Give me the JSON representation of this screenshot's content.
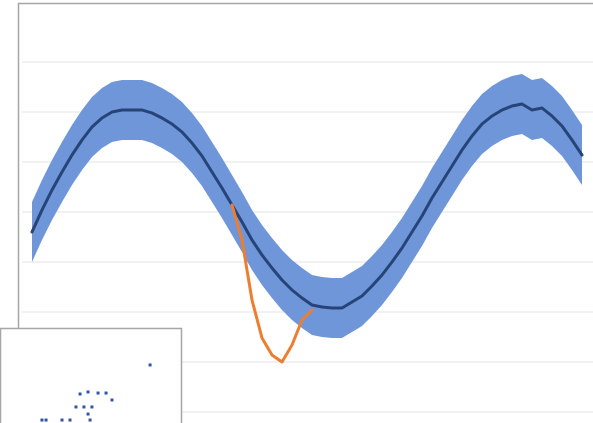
{
  "chart_data": [
    {
      "type": "line",
      "x": [
        0,
        1,
        2,
        3,
        4,
        5,
        6,
        7,
        8,
        9,
        10,
        11,
        12,
        13,
        14,
        15,
        16,
        17,
        18,
        19,
        20,
        21,
        22,
        23,
        24,
        25,
        26,
        27,
        28,
        29,
        30,
        31,
        32,
        33,
        34,
        35,
        36,
        37,
        38,
        39,
        40,
        41,
        42,
        43,
        44,
        45,
        46,
        47,
        48,
        49,
        50,
        51,
        52,
        53,
        54,
        55
      ],
      "xlim": [
        0,
        55
      ],
      "ylim": [
        0,
        8
      ],
      "yticks": [
        0,
        1,
        2,
        3,
        4,
        5,
        6,
        7
      ],
      "grid": true,
      "band": {
        "color": "#6f96d9",
        "upper": [
          4.2,
          4.64,
          5.04,
          5.4,
          5.74,
          6.04,
          6.3,
          6.48,
          6.6,
          6.64,
          6.64,
          6.64,
          6.58,
          6.48,
          6.36,
          6.2,
          5.98,
          5.72,
          5.4,
          5.08,
          4.74,
          4.4,
          4.04,
          3.74,
          3.48,
          3.24,
          3.04,
          2.88,
          2.74,
          2.7,
          2.68,
          2.68,
          2.8,
          2.92,
          3.12,
          3.34,
          3.6,
          3.88,
          4.2,
          4.52,
          4.88,
          5.2,
          5.52,
          5.84,
          6.12,
          6.36,
          6.52,
          6.64,
          6.72,
          6.76,
          6.64,
          6.68,
          6.52,
          6.32,
          6.04,
          5.74
        ],
        "lower": [
          3.0,
          3.44,
          3.84,
          4.2,
          4.54,
          4.84,
          5.1,
          5.28,
          5.4,
          5.44,
          5.44,
          5.44,
          5.38,
          5.28,
          5.16,
          5.0,
          4.78,
          4.52,
          4.2,
          3.88,
          3.54,
          3.2,
          2.84,
          2.54,
          2.28,
          2.04,
          1.84,
          1.68,
          1.54,
          1.5,
          1.48,
          1.48,
          1.6,
          1.72,
          1.92,
          2.14,
          2.4,
          2.68,
          3.0,
          3.32,
          3.68,
          4.0,
          4.32,
          4.64,
          4.92,
          5.16,
          5.32,
          5.44,
          5.52,
          5.56,
          5.44,
          5.48,
          5.32,
          5.12,
          4.84,
          4.54
        ]
      },
      "series": [
        {
          "color": "#264478",
          "values": [
            3.6,
            4.04,
            4.44,
            4.8,
            5.14,
            5.44,
            5.7,
            5.88,
            6.0,
            6.04,
            6.04,
            6.04,
            5.98,
            5.88,
            5.76,
            5.6,
            5.38,
            5.12,
            4.8,
            4.48,
            4.14,
            3.8,
            3.44,
            3.14,
            2.88,
            2.64,
            2.44,
            2.28,
            2.14,
            2.1,
            2.08,
            2.08,
            2.2,
            2.32,
            2.52,
            2.74,
            3.0,
            3.28,
            3.6,
            3.92,
            4.28,
            4.6,
            4.92,
            5.24,
            5.52,
            5.76,
            5.92,
            6.04,
            6.12,
            6.16,
            6.04,
            6.08,
            5.92,
            5.72,
            5.44,
            5.14
          ]
        },
        {
          "color": "#ed7d31",
          "values": [
            null,
            null,
            null,
            null,
            null,
            null,
            null,
            null,
            null,
            null,
            null,
            null,
            null,
            null,
            null,
            null,
            null,
            null,
            null,
            null,
            4.14,
            3.44,
            2.24,
            1.48,
            1.14,
            1.0,
            1.34,
            1.84,
            2.04,
            null,
            null,
            null,
            null,
            null,
            null,
            null,
            null,
            null,
            null,
            null,
            null,
            null,
            null,
            null,
            null,
            null,
            null,
            null,
            null,
            null,
            null,
            null,
            null,
            null,
            null,
            null
          ]
        }
      ]
    },
    {
      "type": "scatter",
      "xlim": [
        0,
        100
      ],
      "ylim": [
        0,
        100
      ],
      "color": "#2f56a6",
      "x": [
        82.4,
        41.2,
        45.9,
        51.8,
        56.5,
        60.0,
        38.8,
        43.5,
        48.2,
        45.9,
        30.6,
        35.3,
        47.1,
        18.8,
        21.2
      ],
      "y": [
        79.2,
        55.0,
        56.7,
        55.8,
        55.8,
        50.0,
        44.2,
        44.2,
        44.2,
        38.3,
        33.3,
        33.3,
        33.3,
        33.3,
        33.3
      ]
    }
  ]
}
